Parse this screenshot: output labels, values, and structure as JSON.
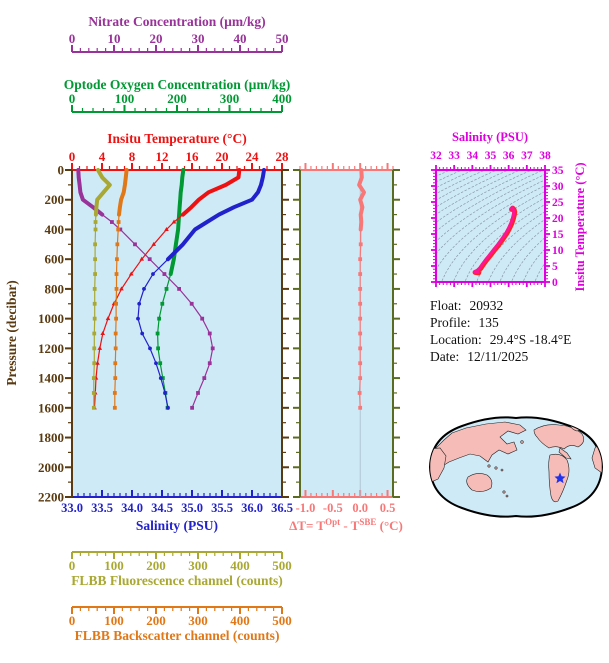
{
  "colors": {
    "plot_bg": "#CFEAF7",
    "nitrate": "#993399",
    "oxygen": "#009933",
    "temperature": "#EE1111",
    "salinity": "#2222CC",
    "pressure": "#5A3A10",
    "fluorescence": "#A8A832",
    "backscatter": "#E07818",
    "delta_t": "#F87878",
    "mid_spine": "#5A6B22",
    "ts_magenta": "#DD00DD",
    "ts_curve": "#FF1493",
    "ts_curve_edge": "#FF2222",
    "contour": "#8898A8",
    "land": "#F5BCB8",
    "ocean": "#CFEAF7",
    "star": "#2233EE",
    "text": "#111111"
  },
  "axes": {
    "nitrate": {
      "title": "Nitrate Concentration (µm/kg)",
      "min": 0,
      "max": 50,
      "major": 10,
      "minor": 2,
      "decimals": 0
    },
    "oxygen": {
      "title": "Optode Oxygen Concentration (µm/kg)",
      "min": 0,
      "max": 400,
      "major": 100,
      "minor": 20,
      "decimals": 0
    },
    "temperature": {
      "title": "Insitu Temperature (°C)",
      "min": 0,
      "max": 28,
      "major": 4,
      "minor": 1,
      "decimals": 0
    },
    "pressure": {
      "title": "Pressure (decibar)",
      "min": 0,
      "max": 2200,
      "major": 200,
      "minor": 100,
      "decimals": 0
    },
    "salinity": {
      "title": "Salinity (PSU)",
      "min": 33.0,
      "max": 36.5,
      "major": 0.5,
      "minor": 0.1,
      "decimals": 1
    },
    "fluorescence": {
      "title": "FLBB Fluorescence channel (counts)",
      "min": 0,
      "max": 500,
      "major": 100,
      "minor": 20,
      "decimals": 0
    },
    "backscatter": {
      "title": "FLBB Backscatter channel (counts)",
      "min": 0,
      "max": 500,
      "major": 100,
      "minor": 20,
      "decimals": 0
    },
    "delta_t": {
      "min": -1.1,
      "max": 0.6,
      "major": 0.5,
      "minor": 0.1,
      "decimals": 1,
      "label": {
        "p1": "ΔT= T",
        "sup1": "Opt",
        "p2": " - T",
        "sup2": "SBE",
        "p3": " (°C)"
      }
    },
    "ts_salinity": {
      "title": "Salinity (PSU)",
      "min": 32,
      "max": 38,
      "major": 1,
      "minor": 0.2,
      "decimals": 0
    },
    "ts_temperature": {
      "title": "Insitu Temperature (°C)",
      "min": 0,
      "max": 35,
      "major": 5,
      "minor": 1,
      "decimals": 0
    }
  },
  "metadata": {
    "lines": [
      {
        "label": "Float:",
        "value": "20932"
      },
      {
        "label": "Profile:",
        "value": "135"
      },
      {
        "label": "Location:",
        "value": "29.4°S  -18.4°E"
      },
      {
        "label": "Date:",
        "value": "12/11/2025"
      }
    ]
  },
  "chart_data": [
    {
      "type": "line",
      "name": "profile-plot",
      "ylabel": "Pressure (decibar)",
      "ylim": [
        0,
        2200
      ],
      "pressures": [
        0,
        50,
        100,
        150,
        200,
        250,
        300,
        350,
        400,
        500,
        600,
        700,
        800,
        900,
        1000,
        1100,
        1200,
        1300,
        1400,
        1500,
        1600
      ],
      "series": [
        {
          "name": "Nitrate Concentration",
          "units": "µm/kg",
          "color_key": "nitrate",
          "range": [
            0,
            50
          ],
          "marker": "square",
          "thick_to": 320,
          "values": [
            1.5,
            1.6,
            1.8,
            2.0,
            2.6,
            5.0,
            7.2,
            9.5,
            11.5,
            15.0,
            18.5,
            22.0,
            25.5,
            28.5,
            31.0,
            32.8,
            33.5,
            32.8,
            31.5,
            30.0,
            28.6
          ]
        },
        {
          "name": "Optode Oxygen Concentration",
          "units": "µm/kg",
          "color_key": "oxygen",
          "range": [
            0,
            400
          ],
          "marker": "square",
          "thick_to": 700,
          "values": [
            212,
            210,
            209,
            207,
            206,
            205,
            204,
            203,
            202,
            198,
            194,
            188,
            180,
            172,
            166,
            163,
            164,
            168,
            173,
            178,
            182
          ]
        },
        {
          "name": "Insitu Temperature",
          "units": "°C",
          "color_key": "temperature",
          "range": [
            0,
            28
          ],
          "marker": "triangle",
          "thick_to": 300,
          "values": [
            22.3,
            22.2,
            20.5,
            18.2,
            16.9,
            15.9,
            14.8,
            13.6,
            12.6,
            10.9,
            9.3,
            7.9,
            6.6,
            5.6,
            4.8,
            4.1,
            3.7,
            3.4,
            3.2,
            3.1,
            3.0
          ]
        },
        {
          "name": "Salinity",
          "units": "PSU",
          "color_key": "salinity",
          "range": [
            33.0,
            36.5
          ],
          "marker": "circle",
          "thick_to": 650,
          "values": [
            36.2,
            36.18,
            36.15,
            36.1,
            36.0,
            35.7,
            35.45,
            35.25,
            35.05,
            34.85,
            34.6,
            34.35,
            34.2,
            34.12,
            34.1,
            34.17,
            34.3,
            34.4,
            34.48,
            34.55,
            34.6
          ]
        },
        {
          "name": "FLBB Fluorescence channel",
          "units": "counts",
          "color_key": "fluorescence",
          "range": [
            0,
            500
          ],
          "marker": "square",
          "thick_to": 320,
          "values": [
            62,
            72,
            90,
            75,
            60,
            58,
            57,
            56,
            56,
            55,
            55,
            55,
            54,
            54,
            54,
            53,
            53,
            53,
            52,
            52,
            52
          ]
        },
        {
          "name": "FLBB Backscatter channel",
          "units": "counts",
          "color_key": "backscatter",
          "range": [
            0,
            500
          ],
          "marker": "square",
          "thick_to": 320,
          "values": [
            130,
            128,
            126,
            123,
            117,
            114,
            112,
            111,
            110,
            108,
            107,
            106,
            106,
            105,
            105,
            104,
            104,
            103,
            103,
            102,
            102
          ]
        }
      ]
    },
    {
      "type": "line",
      "name": "delta-t-plot",
      "xlabel": "ΔT= T^Opt - T^SBE (°C)",
      "xlim": [
        -1.1,
        0.6
      ],
      "ylim": [
        0,
        2200
      ],
      "pressures": [
        0,
        50,
        100,
        150,
        200,
        250,
        300,
        350,
        400,
        500,
        600,
        700,
        800,
        900,
        1000,
        1100,
        1200,
        1300,
        1400,
        1500,
        1600
      ],
      "series": [
        {
          "name": "ΔT",
          "units": "°C",
          "color_key": "delta_t",
          "marker": "square",
          "thick_to": 420,
          "values": [
            0.02,
            0.03,
            -0.02,
            0.07,
            0.0,
            0.04,
            0.01,
            0.02,
            0.01,
            0.01,
            0.0,
            0.0,
            0.0,
            0.0,
            0.0,
            0.0,
            0.0,
            0.0,
            0.0,
            -0.01,
            0.0
          ]
        }
      ]
    },
    {
      "type": "scatter",
      "name": "ts-diagram",
      "xlabel": "Salinity (PSU)",
      "ylabel": "Insitu Temperature (°C)",
      "xlim": [
        32,
        38
      ],
      "ylim": [
        0,
        35
      ],
      "points_s_t": [
        [
          34.35,
          2.85
        ],
        [
          34.15,
          3.0
        ],
        [
          34.3,
          3.4
        ],
        [
          34.45,
          4.2
        ],
        [
          34.6,
          5.4
        ],
        [
          34.78,
          6.8
        ],
        [
          34.98,
          8.2
        ],
        [
          35.2,
          9.8
        ],
        [
          35.45,
          11.6
        ],
        [
          35.68,
          13.4
        ],
        [
          35.9,
          15.2
        ],
        [
          36.05,
          16.8
        ],
        [
          36.18,
          18.4
        ],
        [
          36.26,
          19.8
        ],
        [
          36.31,
          21.0
        ],
        [
          36.33,
          21.9
        ],
        [
          36.3,
          22.6
        ],
        [
          36.22,
          23.1
        ],
        [
          36.16,
          22.7
        ]
      ],
      "contours": {
        "label": "sigma-t isopycnals",
        "min": 19.5,
        "max": 30.5,
        "step": 0.5
      }
    },
    {
      "type": "map",
      "name": "float-location-map",
      "projection": "global oval, Pacific-centered",
      "marker": "float-location-star"
    }
  ]
}
